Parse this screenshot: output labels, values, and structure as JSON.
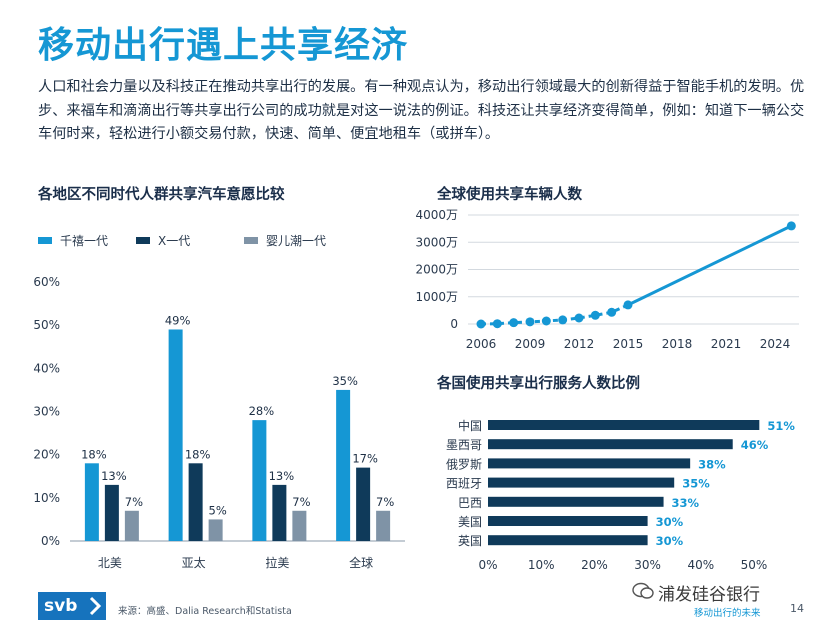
{
  "page": {
    "title": "移动出行遇上共享经济",
    "intro": "人口和社会力量以及科技正在推动共享出行的发展。有一种观点认为，移动出行领域最大的创新得益于智能手机的发明。优步、来福车和滴滴出行等共享出行公司的成功就是对这一说法的例证。科技还让共享经济变得简单，例如：知道下一辆公交车何时来，轻松进行小额交易付款，快速、简单、便宜地租车（或拼车）。",
    "source": "来源：高盛、Dalia Research和Statista",
    "logo_text": "svb",
    "watermark": "浦发硅谷银行",
    "footer_caption": "移动出行的未来",
    "page_number": "14"
  },
  "colors": {
    "accent": "#1597d4",
    "navy": "#0f3a5a",
    "gray": "#7f93a6",
    "bar_country": "#0f3a5a"
  },
  "chart_data": [
    {
      "type": "bar",
      "title": "各地区不同时代人群共享汽车意愿比较",
      "categories": [
        "北美",
        "亚太",
        "拉美",
        "全球"
      ],
      "series": [
        {
          "name": "千禧一代",
          "values": [
            18,
            49,
            28,
            35
          ],
          "labels": [
            "18%",
            "49%",
            "28%",
            "35%"
          ],
          "color": "#1597d4"
        },
        {
          "name": "X一代",
          "values": [
            13,
            18,
            13,
            17
          ],
          "labels": [
            "13%",
            "18%",
            "13%",
            "17%"
          ],
          "color": "#0f3a5a"
        },
        {
          "name": "婴儿潮一代",
          "values": [
            7,
            5,
            7,
            7
          ],
          "labels": [
            "7%",
            "5%",
            "7%",
            "7%"
          ],
          "color": "#7f93a6"
        }
      ],
      "ylim": [
        0,
        60
      ],
      "yticks": [
        "0%",
        "10%",
        "20%",
        "30%",
        "40%",
        "50%",
        "60%"
      ],
      "grid": false,
      "legend": "top"
    },
    {
      "type": "line",
      "title": "全球使用共享车辆人数",
      "x": [
        2006,
        2007,
        2008,
        2009,
        2010,
        2011,
        2012,
        2013,
        2014,
        2015,
        2025
      ],
      "y": [
        0,
        10,
        50,
        80,
        110,
        150,
        220,
        320,
        430,
        700,
        3600
      ],
      "xticks": [
        "2006",
        "2009",
        "2012",
        "2015",
        "2018",
        "2021",
        "2024"
      ],
      "yticks": [
        "0",
        "1000万",
        "2000万",
        "3000万",
        "4000万"
      ],
      "ylim": [
        0,
        4000
      ],
      "grid": true,
      "color": "#1597d4"
    },
    {
      "type": "bar",
      "orientation": "horizontal",
      "title": "各国使用共享出行服务人数比例",
      "categories": [
        "中国",
        "墨西哥",
        "俄罗斯",
        "西班牙",
        "巴西",
        "美国",
        "英国"
      ],
      "values": [
        51,
        46,
        38,
        35,
        33,
        30,
        30
      ],
      "labels": [
        "51%",
        "46%",
        "38%",
        "35%",
        "33%",
        "30%",
        "30%"
      ],
      "xticks": [
        "0%",
        "10%",
        "20%",
        "30%",
        "40%",
        "50%"
      ],
      "xlim": [
        0,
        55
      ]
    }
  ]
}
